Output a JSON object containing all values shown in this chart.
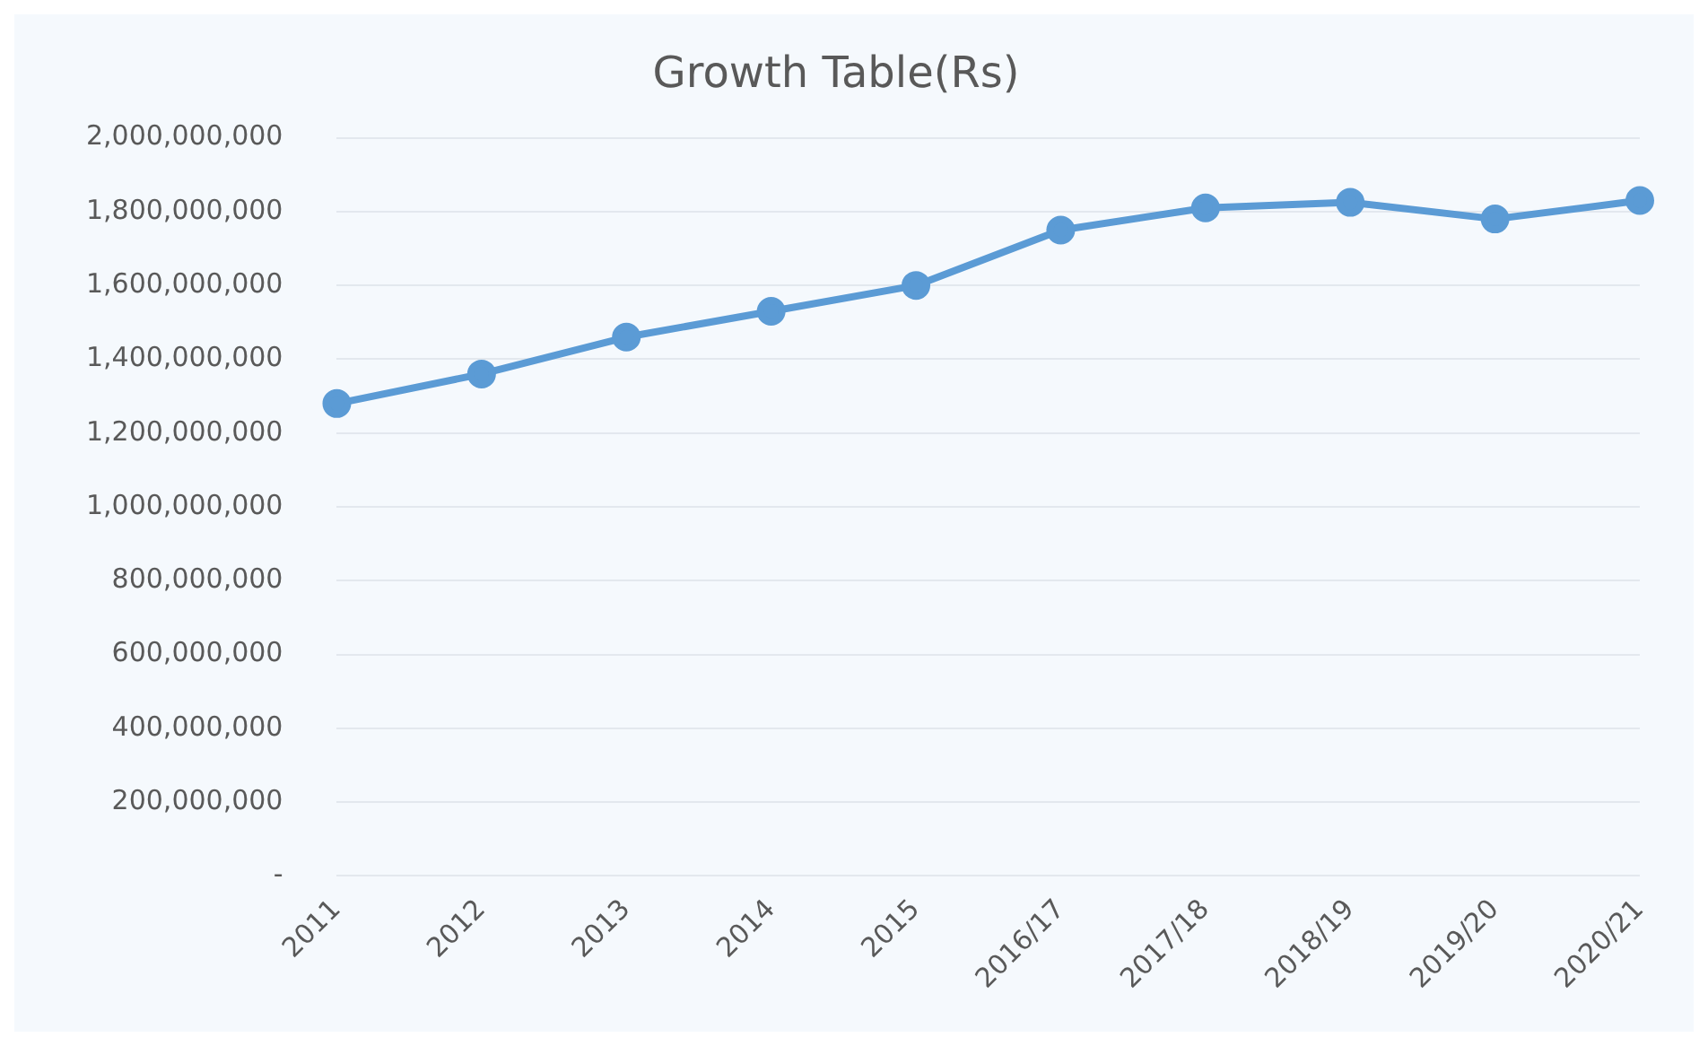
{
  "chart_data": {
    "type": "line",
    "title": "Growth Table(Rs)",
    "categories": [
      "2011",
      "2012",
      "2013",
      "2014",
      "2015",
      "2016/17",
      "2017/18",
      "2018/19",
      "2019/20",
      "2020/21"
    ],
    "series": [
      {
        "color": "#5b9bd5",
        "values": [
          1280000000,
          1360000000,
          1460000000,
          1530000000,
          1600000000,
          1750000000,
          1810000000,
          1825000000,
          1780000000,
          1830000000
        ]
      }
    ],
    "ylim": [
      0,
      2000000000
    ],
    "yticks": [
      {
        "value": 0,
        "label": "-"
      },
      {
        "value": 200000000,
        "label": "200,000,000"
      },
      {
        "value": 400000000,
        "label": "400,000,000"
      },
      {
        "value": 600000000,
        "label": "600,000,000"
      },
      {
        "value": 800000000,
        "label": "800,000,000"
      },
      {
        "value": 1000000000,
        "label": "1,000,000,000"
      },
      {
        "value": 1200000000,
        "label": "1,200,000,000"
      },
      {
        "value": 1400000000,
        "label": "1,400,000,000"
      },
      {
        "value": 1600000000,
        "label": "1,600,000,000"
      },
      {
        "value": 1800000000,
        "label": "1,800,000,000"
      },
      {
        "value": 2000000000,
        "label": "2,000,000,000"
      }
    ],
    "grid": "y",
    "marker": "circle",
    "legend": false
  }
}
